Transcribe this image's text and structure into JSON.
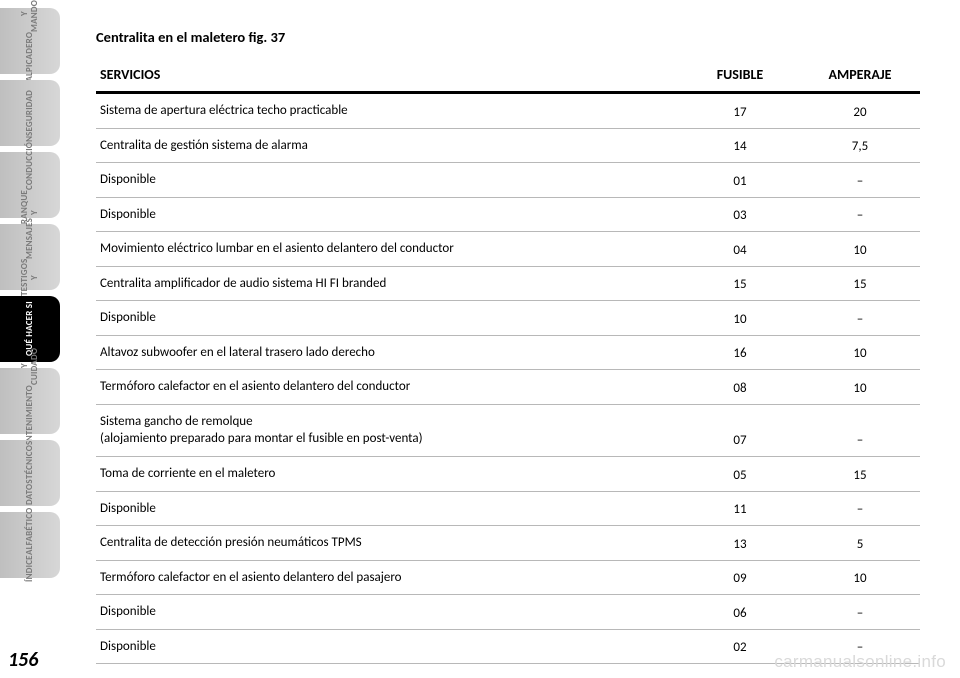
{
  "sidebar": {
    "tabs": [
      {
        "label": "SALPICADERO\nY MANDOS",
        "active": false
      },
      {
        "label": "SEGURIDAD",
        "active": false
      },
      {
        "label": "ARRANQUE Y\nCONDUCCIÓN",
        "active": false
      },
      {
        "label": "TESTIGOS Y\nMENSAJES",
        "active": false
      },
      {
        "label": "QUÉ HACER SI",
        "active": true
      },
      {
        "label": "MANTENIMIENTO\nY CUIDADO",
        "active": false
      },
      {
        "label": "DATOS\nTÉCNICOS",
        "active": false
      },
      {
        "label": "ÍNDICE\nALFABÉTICO",
        "active": false
      }
    ]
  },
  "title": "Centralita en el maletero fig. 37",
  "table": {
    "columns": {
      "service": "SERVICIOS",
      "fusible": "FUSIBLE",
      "amperaje": "AMPERAJE"
    },
    "header_fontsize": 14,
    "body_fontsize": 13,
    "rule_color": "#b8b8b8",
    "header_rule_color": "#000000",
    "rows": [
      {
        "service": "Sistema de apertura eléctrica techo practicable",
        "fusible": "17",
        "amperaje": "20"
      },
      {
        "service": "Centralita de gestión sistema de alarma",
        "fusible": "14",
        "amperaje": "7,5"
      },
      {
        "service": "Disponible",
        "fusible": "01",
        "amperaje": "–"
      },
      {
        "service": "Disponible",
        "fusible": "03",
        "amperaje": "–"
      },
      {
        "service": "Movimiento eléctrico lumbar en el asiento delantero del conductor",
        "fusible": "04",
        "amperaje": "10"
      },
      {
        "service": "Centralita amplificador de audio sistema HI FI branded",
        "fusible": "15",
        "amperaje": "15"
      },
      {
        "service": "Disponible",
        "fusible": "10",
        "amperaje": "–"
      },
      {
        "service": "Altavoz subwoofer en el lateral trasero lado derecho",
        "fusible": "16",
        "amperaje": "10"
      },
      {
        "service": "Termóforo calefactor en el asiento delantero del conductor",
        "fusible": "08",
        "amperaje": "10"
      },
      {
        "service": "Sistema gancho de remolque\n(alojamiento preparado para montar el fusible en post-venta)",
        "fusible": "07",
        "amperaje": "–"
      },
      {
        "service": "Toma de corriente en el maletero",
        "fusible": "05",
        "amperaje": "15"
      },
      {
        "service": "Disponible",
        "fusible": "11",
        "amperaje": "–"
      },
      {
        "service": "Centralita de detección presión neumáticos TPMS",
        "fusible": "13",
        "amperaje": "5"
      },
      {
        "service": "Termóforo calefactor en el asiento delantero del pasajero",
        "fusible": "09",
        "amperaje": "10"
      },
      {
        "service": "Disponible",
        "fusible": "06",
        "amperaje": "–"
      },
      {
        "service": "Disponible",
        "fusible": "02",
        "amperaje": "–"
      }
    ]
  },
  "page_number": "156",
  "watermark": "carmanualsonline.info",
  "colors": {
    "background": "#ffffff",
    "text": "#000000",
    "tab_inactive_bg_from": "#d7d7d7",
    "tab_inactive_bg_to": "#bfbfbf",
    "tab_inactive_text": "#7a7a7a",
    "tab_active_bg": "#000000",
    "tab_active_text": "#ffffff",
    "watermark": "#d9d9d9"
  }
}
